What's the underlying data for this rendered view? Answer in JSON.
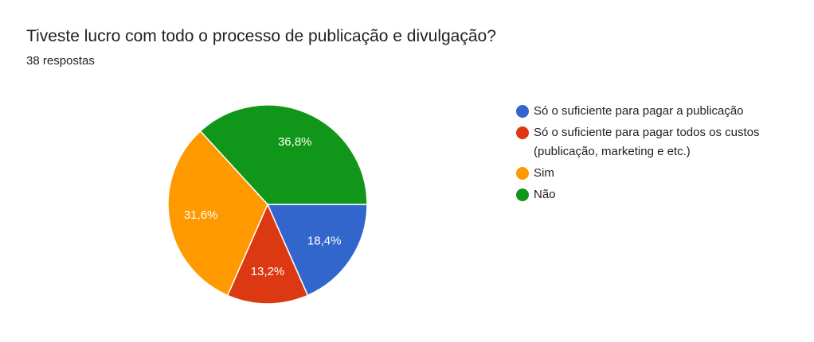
{
  "chart_data": {
    "type": "pie",
    "title": "Tiveste lucro com todo o processo de publicação e divulgação?",
    "subtitle": "38 respostas",
    "categories": [
      "Só o suficiente para pagar a publicação",
      "Só o suficiente para pagar todos os custos (publicação, marketing e etc.)",
      "Sim",
      "Não"
    ],
    "values": [
      18.4,
      13.2,
      31.6,
      36.8
    ],
    "value_labels": [
      "18,4%",
      "13,2%",
      "31,6%",
      "36,8%"
    ],
    "colors": [
      "#3366cc",
      "#dc3912",
      "#ff9900",
      "#109618"
    ],
    "legend": "right"
  }
}
